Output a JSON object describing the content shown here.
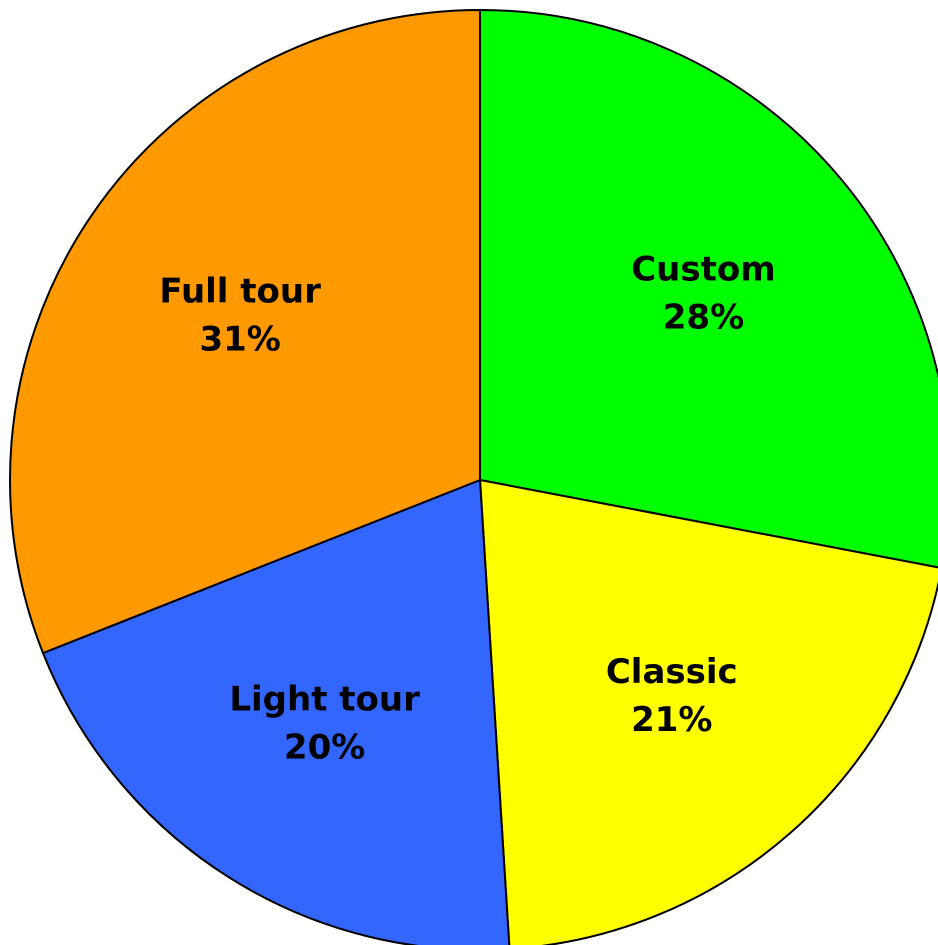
{
  "chart_data": {
    "type": "pie",
    "categories": [
      "Custom",
      "Classic",
      "Light tour",
      "Full tour"
    ],
    "values": [
      28,
      21,
      20,
      31
    ],
    "value_labels": [
      "28%",
      "21%",
      "20%",
      "31%"
    ],
    "colors": [
      "#00ff00",
      "#ffff00",
      "#3366ff",
      "#ff9900"
    ]
  }
}
